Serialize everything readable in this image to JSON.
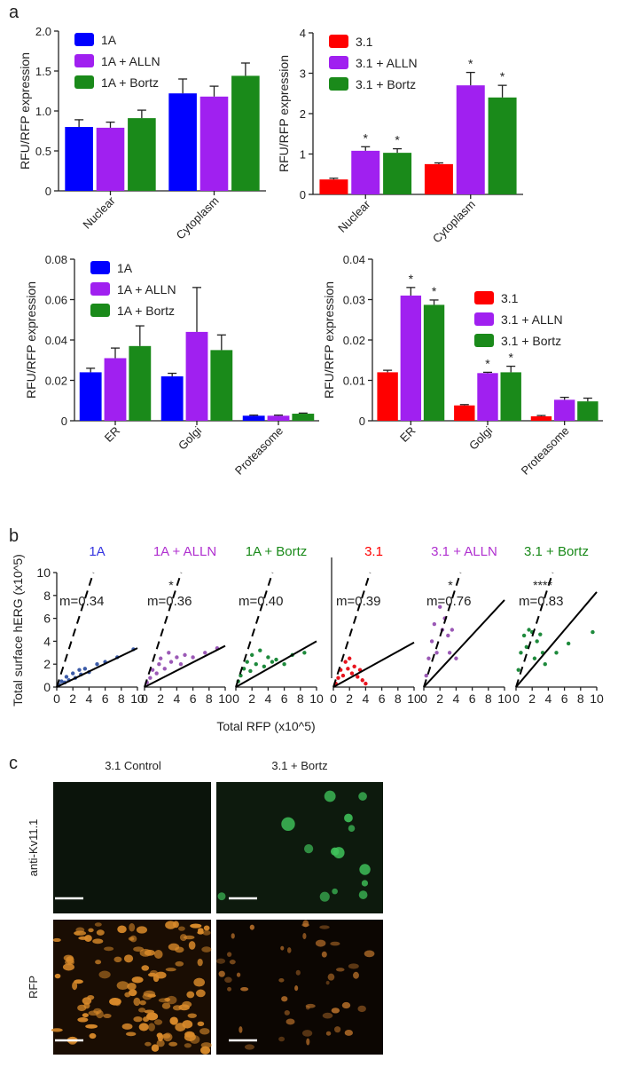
{
  "panel_labels": [
    "a",
    "b",
    "c"
  ],
  "chart_data": [
    {
      "type": "bar",
      "ylabel": "RFU/RFP expression",
      "categories": [
        "Nuclear",
        "Cytoplasm"
      ],
      "series": [
        {
          "name": "1A",
          "color": "#0000ff",
          "values": [
            0.8,
            1.22
          ],
          "errors": [
            0.09,
            0.18
          ]
        },
        {
          "name": "1A + ALLN",
          "color": "#a020f0",
          "values": [
            0.79,
            1.18
          ],
          "errors": [
            0.07,
            0.13
          ]
        },
        {
          "name": "1A + Bortz",
          "color": "#1a8a1a",
          "values": [
            0.91,
            1.44
          ],
          "errors": [
            0.1,
            0.16
          ]
        }
      ],
      "ylim": [
        0,
        2
      ],
      "yticks": [
        0,
        0.5,
        {
          "value": 1,
          "label": "1.0"
        },
        1.5,
        {
          "value": 2,
          "label": "2.0"
        }
      ],
      "legend": "upper left"
    },
    {
      "type": "bar",
      "ylabel": "RFU/RFP expression",
      "categories": [
        "Nuclear",
        "Cytoplasm"
      ],
      "series": [
        {
          "name": "3.1",
          "color": "#ff0000",
          "values": [
            0.37,
            0.75
          ],
          "errors": [
            0.03,
            0.03
          ]
        },
        {
          "name": "3.1 + ALLN",
          "color": "#a020f0",
          "values": [
            1.08,
            2.7
          ],
          "errors": [
            0.1,
            0.32
          ]
        },
        {
          "name": "3.1 + Bortz",
          "color": "#1a8a1a",
          "values": [
            1.03,
            2.4
          ],
          "errors": [
            0.1,
            0.3
          ]
        }
      ],
      "annotations": [
        {
          "text": "*",
          "category": 0,
          "series": 1
        },
        {
          "text": "*",
          "category": 0,
          "series": 2
        },
        {
          "text": "*",
          "category": 1,
          "series": 1
        },
        {
          "text": "*",
          "category": 1,
          "series": 2
        }
      ],
      "ylim": [
        0,
        4
      ],
      "yticks": [
        0,
        1,
        2,
        3,
        4
      ],
      "legend": "upper left"
    },
    {
      "type": "bar",
      "ylabel": "RFU/RFP expression",
      "categories": [
        "ER",
        "Golgi",
        "Proteasome"
      ],
      "series": [
        {
          "name": "1A",
          "color": "#0000ff",
          "values": [
            0.024,
            0.022,
            0.0025
          ],
          "errors": [
            0.002,
            0.0015,
            0.0003
          ]
        },
        {
          "name": "1A + ALLN",
          "color": "#a020f0",
          "values": [
            0.031,
            0.044,
            0.0025
          ],
          "errors": [
            0.005,
            0.022,
            0.0003
          ]
        },
        {
          "name": "1A + Bortz",
          "color": "#1a8a1a",
          "values": [
            0.037,
            0.035,
            0.0035
          ],
          "errors": [
            0.01,
            0.0075,
            0.0003
          ]
        }
      ],
      "ylim": [
        0,
        0.08
      ],
      "yticks": [
        0,
        0.02,
        0.04,
        0.06,
        0.08
      ],
      "legend": "upper left"
    },
    {
      "type": "bar",
      "ylabel": "RFU/RFP expression",
      "categories": [
        "ER",
        "Golgi",
        "Proteasome"
      ],
      "series": [
        {
          "name": "3.1",
          "color": "#ff0000",
          "values": [
            0.012,
            0.0038,
            0.0011
          ],
          "errors": [
            0.0005,
            0.0002,
            0.0002
          ]
        },
        {
          "name": "3.1 + ALLN",
          "color": "#a020f0",
          "values": [
            0.031,
            0.0118,
            0.0052
          ],
          "errors": [
            0.002,
            0.0002,
            0.0006
          ]
        },
        {
          "name": "3.1 + Bortz",
          "color": "#1a8a1a",
          "values": [
            0.0287,
            0.012,
            0.0048
          ],
          "errors": [
            0.0012,
            0.0015,
            0.0008
          ]
        }
      ],
      "annotations": [
        {
          "text": "*",
          "category": 0,
          "series": 1
        },
        {
          "text": "*",
          "category": 0,
          "series": 2
        },
        {
          "text": "*",
          "category": 1,
          "series": 1
        },
        {
          "text": "*",
          "category": 1,
          "series": 2
        }
      ],
      "ylim": [
        0,
        0.04
      ],
      "yticks": [
        0,
        0.01,
        0.02,
        0.03,
        0.04
      ],
      "legend": "center right"
    },
    {
      "type": "scatter",
      "title": "1A",
      "title_color": "#3535e0",
      "color": "#3b5ba8",
      "x": [
        0.3,
        0.6,
        1,
        1.2,
        1.5,
        2,
        2.3,
        2.8,
        3,
        3.5,
        4,
        5,
        6,
        7.5,
        9.5
      ],
      "y": [
        0.2,
        0.5,
        0.4,
        0.9,
        0.6,
        1.2,
        0.8,
        1.5,
        1.1,
        1.6,
        1.3,
        2.0,
        2.2,
        2.6,
        3.3
      ],
      "slope": 0.34,
      "slope_label": "m=0.34",
      "reference_slope": 2.2,
      "xlim": [
        0,
        10
      ],
      "ylim": [
        0,
        10
      ],
      "xticks": [
        0,
        2,
        4,
        6,
        8,
        10
      ],
      "yticks": [
        0,
        2,
        4,
        6,
        8,
        10
      ],
      "yaxis": true
    },
    {
      "type": "scatter",
      "title": "1A + ALLN",
      "title_color": "#b030d0",
      "color": "#9b59b6",
      "x": [
        0.3,
        0.7,
        1,
        1.5,
        1.8,
        2,
        2.5,
        3,
        3.3,
        4,
        4.5,
        5,
        6,
        7.5,
        9
      ],
      "y": [
        0.4,
        0.8,
        1.5,
        1.2,
        2.0,
        2.5,
        1.6,
        3.0,
        2.2,
        2.6,
        2.0,
        2.8,
        2.6,
        3.0,
        3.4
      ],
      "slope": 0.36,
      "slope_label": "m=0.36",
      "annotation": "*",
      "reference_slope": 2.2,
      "xlim": [
        0,
        10
      ],
      "ylim": [
        0,
        10
      ],
      "xticks": [
        0,
        2,
        4,
        6,
        8,
        10
      ]
    },
    {
      "type": "scatter",
      "title": "1A + Bortz",
      "title_color": "#1a8a1a",
      "color": "#1e8a3c",
      "x": [
        0.3,
        0.6,
        1,
        1.4,
        1.8,
        2,
        2.5,
        3,
        3.5,
        4,
        4.5,
        5,
        6,
        7,
        8.5
      ],
      "y": [
        0.5,
        1.0,
        1.6,
        2.2,
        1.4,
        2.8,
        2.0,
        3.2,
        1.8,
        2.6,
        2.2,
        2.4,
        2.0,
        2.8,
        3.0
      ],
      "slope": 0.4,
      "slope_label": "m=0.40",
      "reference_slope": 2.2,
      "xlim": [
        0,
        10
      ],
      "ylim": [
        0,
        10
      ],
      "xticks": [
        0,
        2,
        4,
        6,
        8,
        10
      ]
    },
    {
      "type": "scatter",
      "title": "3.1",
      "title_color": "#ff0000",
      "color": "#e8141e",
      "x": [
        0.3,
        0.6,
        0.9,
        1.2,
        1.5,
        1.8,
        2,
        2.3,
        2.6,
        3,
        3.3,
        3.6,
        4
      ],
      "y": [
        0.3,
        0.8,
        1.5,
        1.0,
        2.2,
        1.6,
        2.5,
        1.2,
        1.8,
        0.9,
        1.5,
        0.6,
        0.3
      ],
      "slope": 0.39,
      "slope_label": "m=0.39",
      "reference_slope": 2.2,
      "xlim": [
        0,
        10
      ],
      "ylim": [
        0,
        10
      ],
      "xticks": [
        0,
        2,
        4,
        6,
        8,
        10
      ]
    },
    {
      "type": "scatter",
      "title": "3.1 + ALLN",
      "title_color": "#b030d0",
      "color": "#9b59b6",
      "x": [
        0.3,
        0.6,
        1,
        1.3,
        1.6,
        2,
        2.3,
        2.6,
        3,
        3.2,
        3.5,
        4
      ],
      "y": [
        1.0,
        2.5,
        4.0,
        5.5,
        3.0,
        7.0,
        5.0,
        6.0,
        4.5,
        3.0,
        5.0,
        2.5
      ],
      "slope": 0.76,
      "slope_label": "m=0.76",
      "annotation": "*",
      "reference_slope": 2.2,
      "xlim": [
        0,
        10
      ],
      "ylim": [
        0,
        10
      ],
      "xticks": [
        0,
        2,
        4,
        6,
        8,
        10
      ]
    },
    {
      "type": "scatter",
      "title": "3.1 + Bortz",
      "title_color": "#1a8a1a",
      "color": "#1e8a3c",
      "x": [
        0.3,
        0.6,
        1,
        1.3,
        1.6,
        2,
        2.3,
        2.6,
        3,
        3.3,
        3.6,
        5,
        6.5,
        9.5
      ],
      "y": [
        1.5,
        3.0,
        4.5,
        3.5,
        5.0,
        4.8,
        2.5,
        4.0,
        4.6,
        3.0,
        2.0,
        3.0,
        3.8,
        4.8
      ],
      "slope": 0.83,
      "slope_label": "m=0.83",
      "annotation": "****",
      "reference_slope": 2.2,
      "xlim": [
        0,
        10
      ],
      "ylim": [
        0,
        10
      ],
      "xticks": [
        0,
        2,
        4,
        6,
        8,
        10
      ]
    }
  ],
  "panel_b": {
    "ylabel": "Total surface hERG (x10^5)",
    "xlabel": "Total RFP  (x10^5)"
  },
  "panel_c": {
    "columns": [
      "3.1 Control",
      "3.1 + Bortz"
    ],
    "rows": [
      "anti-Kv11.1",
      "RFP"
    ]
  }
}
